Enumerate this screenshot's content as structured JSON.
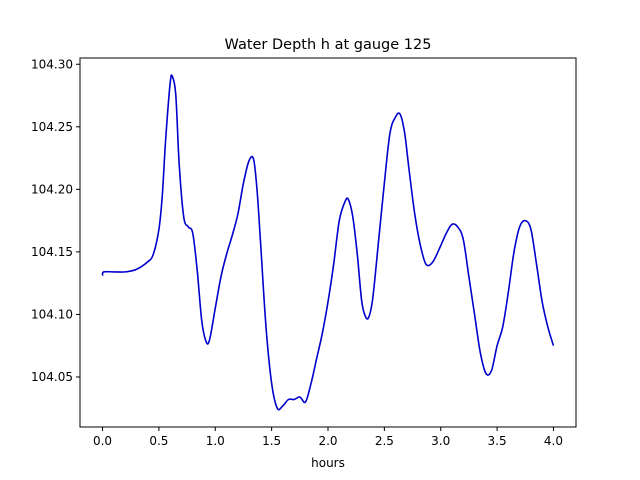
{
  "chart_data": {
    "type": "line",
    "title": "Water Depth h at gauge 125",
    "xlabel": "hours",
    "ylabel": "",
    "xlim": [
      -0.2,
      4.2
    ],
    "ylim": [
      104.01,
      104.305
    ],
    "xticks": [
      0.0,
      0.5,
      1.0,
      1.5,
      2.0,
      2.5,
      3.0,
      3.5,
      4.0
    ],
    "xtick_labels": [
      "0.0",
      "0.5",
      "1.0",
      "1.5",
      "2.0",
      "2.5",
      "3.0",
      "3.5",
      "4.0"
    ],
    "yticks": [
      104.05,
      104.1,
      104.15,
      104.2,
      104.25,
      104.3
    ],
    "ytick_labels": [
      "104.05",
      "104.10",
      "104.15",
      "104.20",
      "104.25",
      "104.30"
    ],
    "grid": false,
    "series": [
      {
        "color": "#0000cc",
        "x": [
          0.0,
          0.01,
          0.1,
          0.2,
          0.3,
          0.4,
          0.45,
          0.5,
          0.53,
          0.56,
          0.6,
          0.62,
          0.65,
          0.68,
          0.72,
          0.76,
          0.8,
          0.84,
          0.88,
          0.92,
          0.95,
          1.0,
          1.05,
          1.1,
          1.15,
          1.2,
          1.25,
          1.3,
          1.34,
          1.37,
          1.4,
          1.45,
          1.5,
          1.55,
          1.6,
          1.65,
          1.7,
          1.75,
          1.8,
          1.85,
          1.9,
          1.95,
          2.0,
          2.05,
          2.1,
          2.15,
          2.18,
          2.22,
          2.26,
          2.3,
          2.34,
          2.37,
          2.4,
          2.45,
          2.5,
          2.55,
          2.6,
          2.64,
          2.68,
          2.72,
          2.77,
          2.82,
          2.87,
          2.93,
          3.0,
          3.05,
          3.1,
          3.15,
          3.2,
          3.25,
          3.3,
          3.35,
          3.4,
          3.45,
          3.5,
          3.55,
          3.6,
          3.65,
          3.7,
          3.75,
          3.8,
          3.85,
          3.9,
          3.95,
          4.0
        ],
        "y": [
          104.131,
          104.134,
          104.134,
          104.134,
          104.136,
          104.142,
          104.148,
          104.168,
          104.195,
          104.24,
          104.285,
          104.29,
          104.275,
          104.22,
          104.178,
          104.17,
          104.165,
          104.135,
          104.095,
          104.078,
          104.08,
          104.105,
          104.13,
          104.148,
          104.163,
          104.18,
          104.205,
          104.223,
          104.224,
          104.2,
          104.16,
          104.09,
          104.045,
          104.025,
          104.027,
          104.032,
          104.032,
          104.034,
          104.03,
          104.045,
          104.065,
          104.085,
          104.11,
          104.14,
          104.175,
          104.19,
          104.192,
          104.178,
          104.148,
          104.11,
          104.097,
          104.1,
          104.115,
          104.16,
          104.205,
          104.245,
          104.258,
          104.26,
          104.245,
          104.215,
          104.18,
          104.155,
          104.14,
          104.142,
          104.155,
          104.165,
          104.172,
          104.17,
          104.16,
          104.13,
          104.1,
          104.07,
          104.053,
          104.055,
          104.075,
          104.09,
          104.118,
          104.15,
          104.17,
          104.175,
          104.168,
          104.14,
          104.11,
          104.09,
          104.075
        ]
      }
    ]
  }
}
